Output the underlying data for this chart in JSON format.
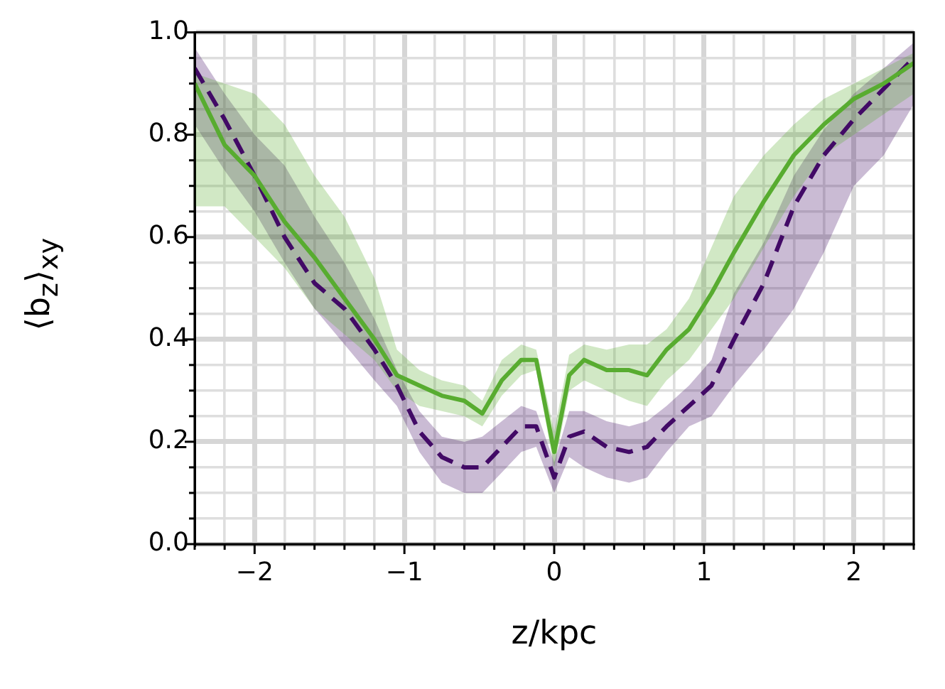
{
  "chart_data": {
    "type": "line",
    "xlabel": "z/kpc",
    "ylabel": "⟨b$_{z}$⟩$_{xy}$",
    "x": [
      -2.4,
      -2.2,
      -2.0,
      -1.8,
      -1.6,
      -1.4,
      -1.2,
      -1.05,
      -0.9,
      -0.75,
      -0.6,
      -0.48,
      -0.35,
      -0.22,
      -0.12,
      0,
      0.1,
      0.2,
      0.35,
      0.5,
      0.62,
      0.75,
      0.9,
      1.05,
      1.2,
      1.4,
      1.6,
      1.8,
      2.0,
      2.2,
      2.4
    ],
    "series": [
      {
        "color": "#58ac30",
        "line_style": "solid",
        "values": [
          0.9,
          0.78,
          0.72,
          0.63,
          0.56,
          0.48,
          0.4,
          0.33,
          0.31,
          0.29,
          0.28,
          0.255,
          0.32,
          0.36,
          0.36,
          0.18,
          0.33,
          0.36,
          0.34,
          0.34,
          0.33,
          0.38,
          0.42,
          0.49,
          0.57,
          0.67,
          0.76,
          0.82,
          0.87,
          0.9,
          0.94
        ],
        "upper": [
          0.92,
          0.9,
          0.88,
          0.82,
          0.72,
          0.64,
          0.52,
          0.38,
          0.34,
          0.32,
          0.31,
          0.28,
          0.36,
          0.39,
          0.38,
          0.22,
          0.37,
          0.39,
          0.38,
          0.39,
          0.39,
          0.42,
          0.48,
          0.58,
          0.68,
          0.76,
          0.82,
          0.87,
          0.9,
          0.93,
          0.96
        ],
        "lower": [
          0.66,
          0.66,
          0.6,
          0.54,
          0.46,
          0.41,
          0.36,
          0.3,
          0.27,
          0.26,
          0.25,
          0.23,
          0.29,
          0.33,
          0.34,
          0.15,
          0.3,
          0.32,
          0.3,
          0.28,
          0.27,
          0.32,
          0.36,
          0.42,
          0.48,
          0.58,
          0.68,
          0.76,
          0.8,
          0.84,
          0.88
        ]
      },
      {
        "color": "#420a66",
        "line_style": "dashed",
        "values": [
          0.93,
          0.83,
          0.72,
          0.6,
          0.51,
          0.46,
          0.38,
          0.31,
          0.22,
          0.17,
          0.15,
          0.15,
          0.19,
          0.23,
          0.23,
          0.13,
          0.21,
          0.22,
          0.19,
          0.18,
          0.19,
          0.23,
          0.27,
          0.31,
          0.4,
          0.51,
          0.66,
          0.76,
          0.83,
          0.89,
          0.95
        ],
        "upper": [
          0.97,
          0.88,
          0.8,
          0.74,
          0.64,
          0.55,
          0.44,
          0.34,
          0.26,
          0.21,
          0.2,
          0.21,
          0.24,
          0.27,
          0.26,
          0.16,
          0.26,
          0.26,
          0.24,
          0.23,
          0.24,
          0.27,
          0.31,
          0.36,
          0.49,
          0.59,
          0.72,
          0.81,
          0.88,
          0.93,
          0.98
        ],
        "lower": [
          0.82,
          0.73,
          0.65,
          0.55,
          0.46,
          0.39,
          0.32,
          0.27,
          0.18,
          0.12,
          0.1,
          0.1,
          0.14,
          0.18,
          0.19,
          0.1,
          0.17,
          0.15,
          0.13,
          0.12,
          0.13,
          0.18,
          0.23,
          0.25,
          0.31,
          0.38,
          0.46,
          0.57,
          0.7,
          0.76,
          0.86
        ]
      }
    ],
    "xlim": [
      -2.4,
      2.4
    ],
    "xticks": [
      {
        "value": -2.4,
        "label": null
      },
      {
        "value": -2.2,
        "label": null
      },
      {
        "value": -2,
        "label": "−2"
      },
      {
        "value": -1.8,
        "label": null
      },
      {
        "value": -1.6,
        "label": null
      },
      {
        "value": -1.4,
        "label": null
      },
      {
        "value": -1.2,
        "label": null
      },
      {
        "value": -1,
        "label": "−1"
      },
      {
        "value": -0.8,
        "label": null
      },
      {
        "value": -0.6,
        "label": null
      },
      {
        "value": -0.4,
        "label": null
      },
      {
        "value": -0.2,
        "label": null
      },
      {
        "value": 0,
        "label": "0"
      },
      {
        "value": 0.2,
        "label": null
      },
      {
        "value": 0.4,
        "label": null
      },
      {
        "value": 0.6,
        "label": null
      },
      {
        "value": 0.8,
        "label": null
      },
      {
        "value": 1,
        "label": "1"
      },
      {
        "value": 1.2,
        "label": null
      },
      {
        "value": 1.4,
        "label": null
      },
      {
        "value": 1.6,
        "label": null
      },
      {
        "value": 1.8,
        "label": null
      },
      {
        "value": 2,
        "label": "2"
      },
      {
        "value": 2.2,
        "label": null
      },
      {
        "value": 2.4,
        "label": null
      }
    ],
    "ylim": [
      0,
      1
    ],
    "yticks": [
      {
        "value": 0,
        "label": "0.0"
      },
      {
        "value": 0.05,
        "label": null
      },
      {
        "value": 0.1,
        "label": null
      },
      {
        "value": 0.15,
        "label": null
      },
      {
        "value": 0.2,
        "label": "0.2"
      },
      {
        "value": 0.25,
        "label": null
      },
      {
        "value": 0.3,
        "label": null
      },
      {
        "value": 0.35,
        "label": null
      },
      {
        "value": 0.4,
        "label": "0.4"
      },
      {
        "value": 0.45,
        "label": null
      },
      {
        "value": 0.5,
        "label": null
      },
      {
        "value": 0.55,
        "label": null
      },
      {
        "value": 0.6,
        "label": "0.6"
      },
      {
        "value": 0.65,
        "label": null
      },
      {
        "value": 0.7,
        "label": null
      },
      {
        "value": 0.75,
        "label": null
      },
      {
        "value": 0.8,
        "label": "0.8"
      },
      {
        "value": 0.85,
        "label": null
      },
      {
        "value": 0.9,
        "label": null
      },
      {
        "value": 0.95,
        "label": null
      },
      {
        "value": 1,
        "label": "1.0"
      }
    ],
    "grid": true,
    "marker": "none",
    "legend": false
  }
}
